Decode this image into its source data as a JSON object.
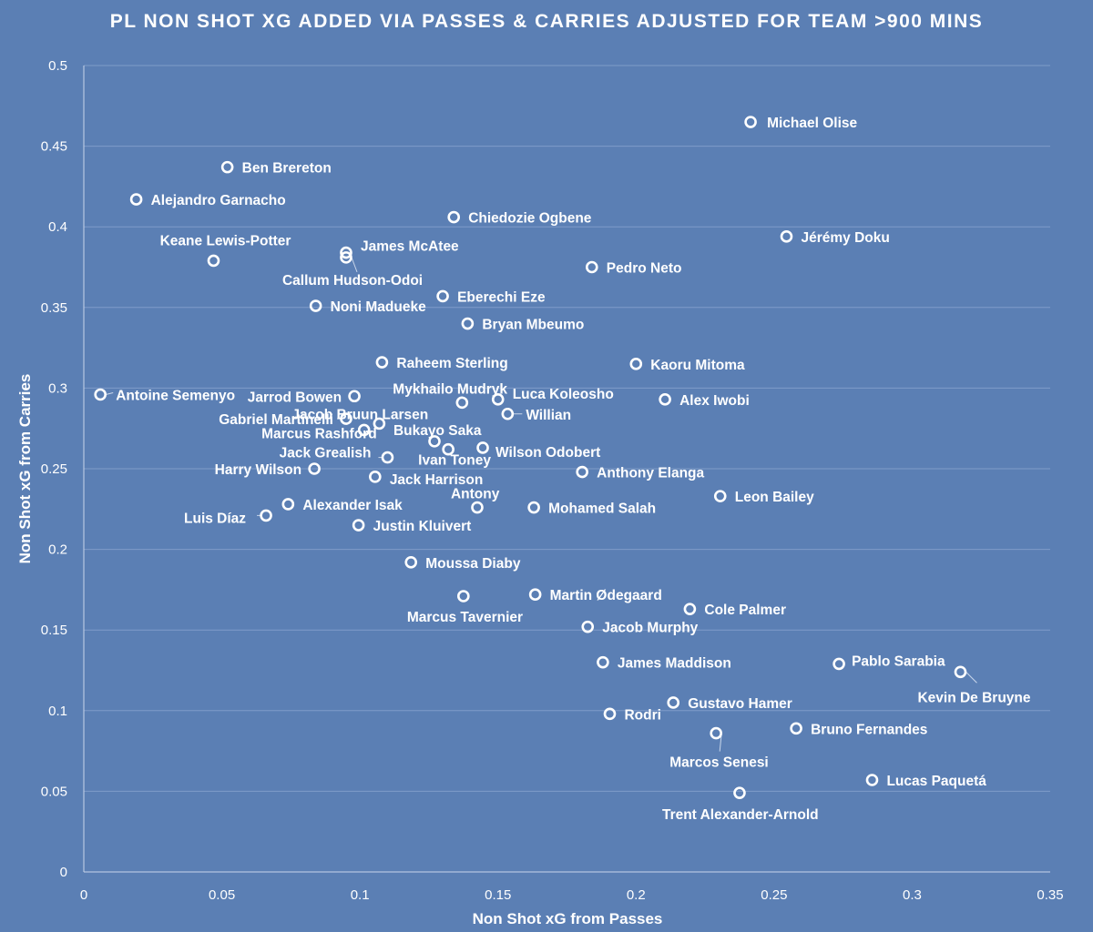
{
  "chart_data": {
    "type": "scatter",
    "title": "PL NON SHOT XG ADDED VIA PASSES & CARRIES ADJUSTED FOR TEAM >900 MINS",
    "xlabel": "Non Shot xG from Passes",
    "ylabel": "Non Shot xG from Carries",
    "xlim": [
      0,
      0.35
    ],
    "ylim": [
      0,
      0.5
    ],
    "x_ticks": [
      "0",
      "0.05",
      "0.1",
      "0.15",
      "0.2",
      "0.25",
      "0.3",
      "0.35"
    ],
    "y_ticks": [
      "0",
      "0.05",
      "0.1",
      "0.15",
      "0.2",
      "0.25",
      "0.3",
      "0.35",
      "0.4",
      "0.45",
      "0.5"
    ],
    "grid": "horizontal",
    "legend": "none",
    "colors": {
      "background": "#5b7fb4",
      "marker": "#ffffff",
      "text": "#ffffff"
    },
    "points": [
      {
        "name": "Michael Olise",
        "x": 0.2415,
        "y": 0.465
      },
      {
        "name": "Ben Brereton",
        "x": 0.052,
        "y": 0.437
      },
      {
        "name": "Alejandro Garnacho",
        "x": 0.019,
        "y": 0.417
      },
      {
        "name": "Chiedozie Ogbene",
        "x": 0.134,
        "y": 0.406
      },
      {
        "name": "Jérémy Doku",
        "x": 0.2545,
        "y": 0.394
      },
      {
        "name": "Keane Lewis-Potter",
        "x": 0.047,
        "y": 0.379
      },
      {
        "name": "James McAtee",
        "x": 0.095,
        "y": 0.384
      },
      {
        "name": "Callum Hudson-Odoi",
        "x": 0.095,
        "y": 0.381
      },
      {
        "name": "Pedro Neto",
        "x": 0.184,
        "y": 0.375
      },
      {
        "name": "Eberechi Eze",
        "x": 0.13,
        "y": 0.357
      },
      {
        "name": "Noni Madueke",
        "x": 0.084,
        "y": 0.351
      },
      {
        "name": "Bryan Mbeumo",
        "x": 0.139,
        "y": 0.34
      },
      {
        "name": "Raheem Sterling",
        "x": 0.108,
        "y": 0.316
      },
      {
        "name": "Kaoru Mitoma",
        "x": 0.2,
        "y": 0.315
      },
      {
        "name": "Antoine Semenyo",
        "x": 0.006,
        "y": 0.296
      },
      {
        "name": "Jarrod Bowen",
        "x": 0.098,
        "y": 0.295
      },
      {
        "name": "Alex Iwobi",
        "x": 0.2105,
        "y": 0.293
      },
      {
        "name": "Mykhailo Mudryk",
        "x": 0.137,
        "y": 0.291
      },
      {
        "name": "Luca Koleosho",
        "x": 0.15,
        "y": 0.293
      },
      {
        "name": "Willian",
        "x": 0.1535,
        "y": 0.284
      },
      {
        "name": "Jacob Bruun Larsen",
        "x": 0.107,
        "y": 0.278
      },
      {
        "name": "Gabriel Martinelli",
        "x": 0.095,
        "y": 0.281
      },
      {
        "name": "Marcus Rashford",
        "x": 0.1015,
        "y": 0.274
      },
      {
        "name": "Bukayo Saka",
        "x": 0.127,
        "y": 0.267
      },
      {
        "name": "Ivan Toney",
        "x": 0.132,
        "y": 0.262
      },
      {
        "name": "Wilson Odobert",
        "x": 0.1445,
        "y": 0.263
      },
      {
        "name": "Jack Grealish",
        "x": 0.11,
        "y": 0.257
      },
      {
        "name": "Harry Wilson",
        "x": 0.0835,
        "y": 0.25
      },
      {
        "name": "Anthony Elanga",
        "x": 0.1805,
        "y": 0.248
      },
      {
        "name": "Jack Harrison",
        "x": 0.1055,
        "y": 0.245
      },
      {
        "name": "Leon Bailey",
        "x": 0.2305,
        "y": 0.233
      },
      {
        "name": "Alexander Isak",
        "x": 0.074,
        "y": 0.228
      },
      {
        "name": "Antony",
        "x": 0.1425,
        "y": 0.226
      },
      {
        "name": "Mohamed Salah",
        "x": 0.163,
        "y": 0.226
      },
      {
        "name": "Luis Díaz",
        "x": 0.066,
        "y": 0.221
      },
      {
        "name": "Justin Kluivert",
        "x": 0.0995,
        "y": 0.215
      },
      {
        "name": "Moussa Diaby",
        "x": 0.1185,
        "y": 0.192
      },
      {
        "name": "Martin Ødegaard",
        "x": 0.1635,
        "y": 0.172
      },
      {
        "name": "Marcus Tavernier",
        "x": 0.1375,
        "y": 0.171
      },
      {
        "name": "Cole Palmer",
        "x": 0.2195,
        "y": 0.163
      },
      {
        "name": "Jacob Murphy",
        "x": 0.1825,
        "y": 0.152
      },
      {
        "name": "James Maddison",
        "x": 0.188,
        "y": 0.13
      },
      {
        "name": "Pablo Sarabia",
        "x": 0.2735,
        "y": 0.129
      },
      {
        "name": "Kevin De Bruyne",
        "x": 0.3175,
        "y": 0.124
      },
      {
        "name": "Gustavo Hamer",
        "x": 0.2135,
        "y": 0.105
      },
      {
        "name": "Rodri",
        "x": 0.1905,
        "y": 0.098
      },
      {
        "name": "Bruno Fernandes",
        "x": 0.258,
        "y": 0.089
      },
      {
        "name": "Marcos Senesi",
        "x": 0.229,
        "y": 0.086
      },
      {
        "name": "Lucas Paquetá",
        "x": 0.2855,
        "y": 0.057
      },
      {
        "name": "Trent Alexander-Arnold",
        "x": 0.2375,
        "y": 0.049
      }
    ]
  }
}
